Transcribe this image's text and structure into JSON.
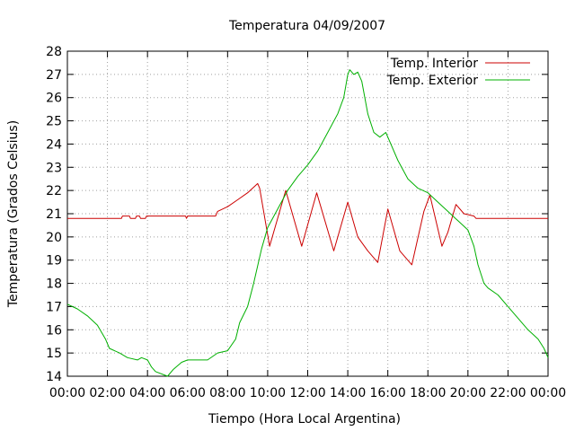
{
  "chart_data": {
    "type": "line",
    "title": "Temperatura 04/09/2007",
    "xlabel": "Tiempo (Hora Local Argentina)",
    "ylabel": "Temperatura (Grados Celsius)",
    "x_unit": "hours",
    "xlim": [
      0,
      24
    ],
    "ylim": [
      14,
      28
    ],
    "x_ticks": [
      {
        "value": 0,
        "label": "00:00"
      },
      {
        "value": 2,
        "label": "02:00"
      },
      {
        "value": 4,
        "label": "04:00"
      },
      {
        "value": 6,
        "label": "06:00"
      },
      {
        "value": 8,
        "label": "08:00"
      },
      {
        "value": 10,
        "label": "10:00"
      },
      {
        "value": 12,
        "label": "12:00"
      },
      {
        "value": 14,
        "label": "14:00"
      },
      {
        "value": 16,
        "label": "16:00"
      },
      {
        "value": 18,
        "label": "18:00"
      },
      {
        "value": 20,
        "label": "20:00"
      },
      {
        "value": 22,
        "label": "22:00"
      },
      {
        "value": 24,
        "label": "00:00"
      }
    ],
    "y_ticks": [
      14,
      15,
      16,
      17,
      18,
      19,
      20,
      21,
      22,
      23,
      24,
      25,
      26,
      27,
      28
    ],
    "grid": true,
    "legend": "top-right",
    "series": [
      {
        "name": "Temp. Interior",
        "color": "#cc0000",
        "points": [
          [
            0,
            20.8
          ],
          [
            2.7,
            20.8
          ],
          [
            2.75,
            20.9
          ],
          [
            3.1,
            20.9
          ],
          [
            3.15,
            20.8
          ],
          [
            3.4,
            20.8
          ],
          [
            3.45,
            20.9
          ],
          [
            3.6,
            20.9
          ],
          [
            3.65,
            20.8
          ],
          [
            3.9,
            20.8
          ],
          [
            3.95,
            20.9
          ],
          [
            5.9,
            20.9
          ],
          [
            5.95,
            20.8
          ],
          [
            6.0,
            20.9
          ],
          [
            7.4,
            20.9
          ],
          [
            7.5,
            21.1
          ],
          [
            8.0,
            21.3
          ],
          [
            8.5,
            21.6
          ],
          [
            9.0,
            21.9
          ],
          [
            9.5,
            22.3
          ],
          [
            9.6,
            22.1
          ],
          [
            10.1,
            19.6
          ],
          [
            10.9,
            22.0
          ],
          [
            11.7,
            19.6
          ],
          [
            12.45,
            21.9
          ],
          [
            13.3,
            19.4
          ],
          [
            14.0,
            21.5
          ],
          [
            14.5,
            20.0
          ],
          [
            15.0,
            19.4
          ],
          [
            15.5,
            18.9
          ],
          [
            16.0,
            21.2
          ],
          [
            16.6,
            19.4
          ],
          [
            17.2,
            18.8
          ],
          [
            17.8,
            21.1
          ],
          [
            18.1,
            21.8
          ],
          [
            18.7,
            19.6
          ],
          [
            19.0,
            20.2
          ],
          [
            19.4,
            21.4
          ],
          [
            19.8,
            21.0
          ],
          [
            20.3,
            20.9
          ],
          [
            20.4,
            20.8
          ],
          [
            24.0,
            20.8
          ]
        ]
      },
      {
        "name": "Temp. Exterior",
        "color": "#00b000",
        "points": [
          [
            0,
            17.1
          ],
          [
            0.5,
            16.9
          ],
          [
            1.0,
            16.6
          ],
          [
            1.5,
            16.2
          ],
          [
            1.9,
            15.6
          ],
          [
            2.1,
            15.2
          ],
          [
            2.6,
            15.0
          ],
          [
            3.0,
            14.8
          ],
          [
            3.5,
            14.7
          ],
          [
            3.7,
            14.8
          ],
          [
            4.0,
            14.7
          ],
          [
            4.2,
            14.4
          ],
          [
            4.4,
            14.2
          ],
          [
            5.0,
            14.0
          ],
          [
            5.3,
            14.3
          ],
          [
            5.7,
            14.6
          ],
          [
            6.0,
            14.7
          ],
          [
            6.5,
            14.7
          ],
          [
            7.0,
            14.7
          ],
          [
            7.5,
            15.0
          ],
          [
            8.0,
            15.1
          ],
          [
            8.4,
            15.6
          ],
          [
            8.6,
            16.3
          ],
          [
            9.0,
            17.0
          ],
          [
            9.3,
            18.0
          ],
          [
            9.7,
            19.5
          ],
          [
            10.0,
            20.4
          ],
          [
            10.5,
            21.2
          ],
          [
            11.0,
            22.0
          ],
          [
            11.5,
            22.6
          ],
          [
            12.0,
            23.1
          ],
          [
            12.5,
            23.7
          ],
          [
            13.0,
            24.5
          ],
          [
            13.5,
            25.3
          ],
          [
            13.8,
            26.0
          ],
          [
            14.0,
            27.0
          ],
          [
            14.1,
            27.2
          ],
          [
            14.3,
            27.0
          ],
          [
            14.5,
            27.1
          ],
          [
            14.7,
            26.7
          ],
          [
            15.0,
            25.3
          ],
          [
            15.3,
            24.5
          ],
          [
            15.6,
            24.3
          ],
          [
            15.9,
            24.5
          ],
          [
            16.1,
            24.1
          ],
          [
            16.5,
            23.3
          ],
          [
            17.0,
            22.5
          ],
          [
            17.5,
            22.1
          ],
          [
            18.0,
            21.9
          ],
          [
            18.5,
            21.5
          ],
          [
            19.0,
            21.1
          ],
          [
            19.5,
            20.7
          ],
          [
            20.0,
            20.3
          ],
          [
            20.3,
            19.6
          ],
          [
            20.5,
            18.8
          ],
          [
            20.8,
            18.0
          ],
          [
            21.0,
            17.8
          ],
          [
            21.5,
            17.5
          ],
          [
            22.0,
            17.0
          ],
          [
            22.5,
            16.5
          ],
          [
            23.0,
            16.0
          ],
          [
            23.5,
            15.6
          ],
          [
            23.8,
            15.2
          ],
          [
            24.0,
            14.8
          ]
        ]
      }
    ]
  }
}
